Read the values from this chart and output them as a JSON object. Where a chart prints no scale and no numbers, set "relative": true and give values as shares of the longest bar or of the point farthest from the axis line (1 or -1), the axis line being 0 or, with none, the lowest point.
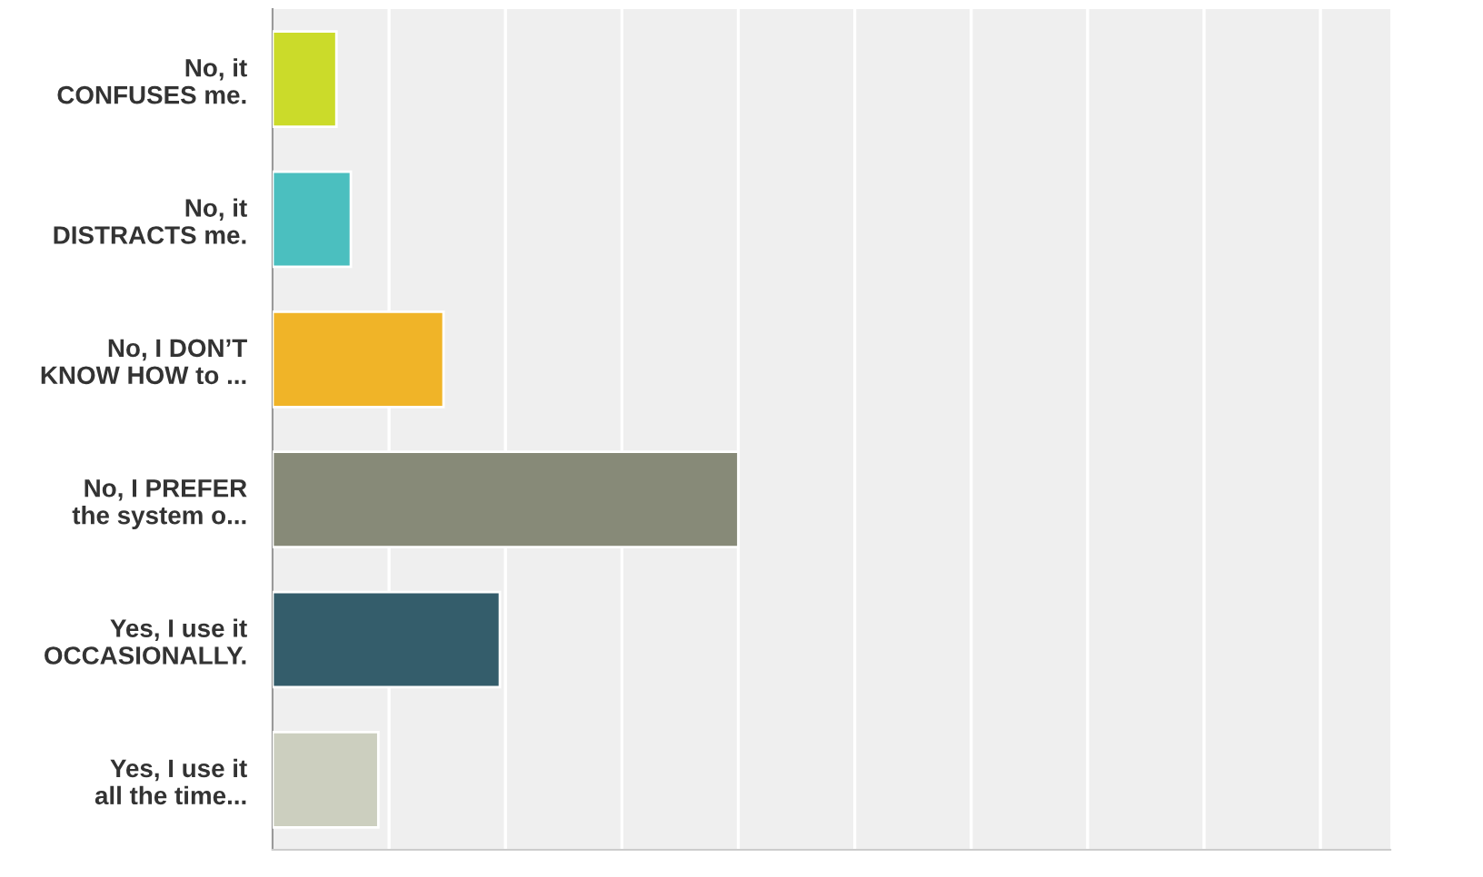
{
  "chart_data": {
    "type": "bar",
    "orientation": "horizontal",
    "relative": true,
    "grid": "x",
    "tick_labels": "y",
    "categories": [
      "No, it\nCONFUSES me.",
      "No, it\nDISTRACTS me.",
      "No, I DON’T\nKNOW HOW to ...",
      "No, I PREFER\nthe system o...",
      "Yes, I use it\nOCCASIONALLY.",
      "Yes, I use it\nall the time..."
    ],
    "values": [
      0.137,
      0.168,
      0.367,
      1,
      0.488,
      0.227
    ],
    "colors": [
      "#cbdb2a",
      "#4bbfbf",
      "#f0b428",
      "#878a78",
      "#345d6b",
      "#cccfbf"
    ]
  }
}
